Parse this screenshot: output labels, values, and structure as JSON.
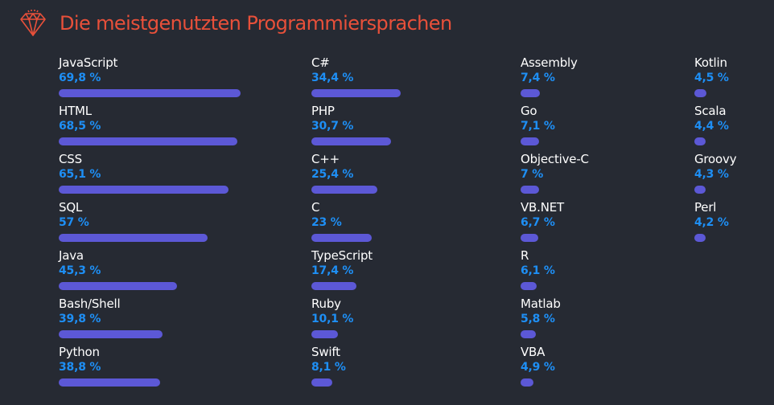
{
  "title": "Die meistgenutzten Programmiersprachen",
  "icon": "diamond-icon",
  "colors": {
    "title": "#e8503a",
    "value": "#1e8ff5",
    "bar": "#5c58d6",
    "background": "#262a33"
  },
  "chart_data": {
    "type": "bar",
    "unit": "%",
    "title": "Die meistgenutzten Programmiersprachen",
    "columns": [
      [
        {
          "name": "JavaScript",
          "value": 69.8,
          "label": "69,8 %"
        },
        {
          "name": "HTML",
          "value": 68.5,
          "label": "68,5 %"
        },
        {
          "name": "CSS",
          "value": 65.1,
          "label": "65,1 %"
        },
        {
          "name": "SQL",
          "value": 57,
          "label": "57 %"
        },
        {
          "name": "Java",
          "value": 45.3,
          "label": "45,3 %"
        },
        {
          "name": "Bash/Shell",
          "value": 39.8,
          "label": "39,8 %"
        },
        {
          "name": "Python",
          "value": 38.8,
          "label": "38,8 %"
        }
      ],
      [
        {
          "name": "C#",
          "value": 34.4,
          "label": "34,4 %"
        },
        {
          "name": "PHP",
          "value": 30.7,
          "label": "30,7 %"
        },
        {
          "name": "C++",
          "value": 25.4,
          "label": "25,4 %"
        },
        {
          "name": "C",
          "value": 23,
          "label": "23 %"
        },
        {
          "name": "TypeScript",
          "value": 17.4,
          "label": "17,4 %"
        },
        {
          "name": "Ruby",
          "value": 10.1,
          "label": "10,1 %"
        },
        {
          "name": "Swift",
          "value": 8.1,
          "label": "8,1 %"
        }
      ],
      [
        {
          "name": "Assembly",
          "value": 7.4,
          "label": "7,4 %"
        },
        {
          "name": "Go",
          "value": 7.1,
          "label": "7,1 %"
        },
        {
          "name": "Objective-C",
          "value": 7,
          "label": "7 %"
        },
        {
          "name": "VB.NET",
          "value": 6.7,
          "label": "6,7 %"
        },
        {
          "name": "R",
          "value": 6.1,
          "label": "6,1 %"
        },
        {
          "name": "Matlab",
          "value": 5.8,
          "label": "5,8 %"
        },
        {
          "name": "VBA",
          "value": 4.9,
          "label": "4,9 %"
        }
      ],
      [
        {
          "name": "Kotlin",
          "value": 4.5,
          "label": "4,5 %"
        },
        {
          "name": "Scala",
          "value": 4.4,
          "label": "4,4 %"
        },
        {
          "name": "Groovy",
          "value": 4.3,
          "label": "4,3 %"
        },
        {
          "name": "Perl",
          "value": 4.2,
          "label": "4,2 %"
        }
      ]
    ]
  }
}
